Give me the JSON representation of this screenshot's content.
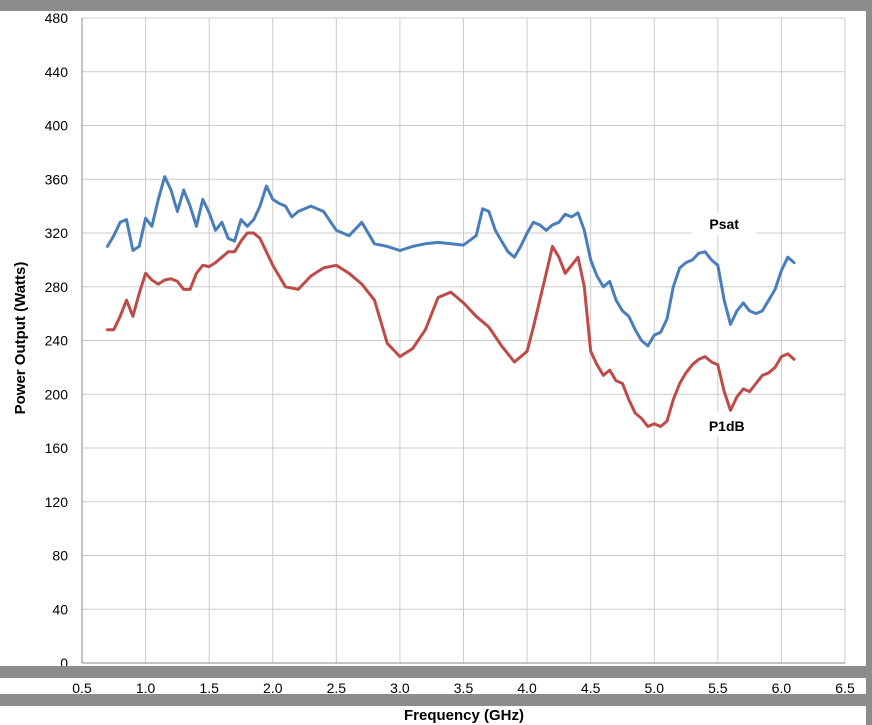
{
  "chart_data": {
    "type": "line",
    "xlabel": "Frequency (GHz)",
    "ylabel": "Power Output (Watts)",
    "xlim": [
      0.5,
      6.5
    ],
    "ylim": [
      0,
      480
    ],
    "xticks": [
      "0.5",
      "1.0",
      "1.5",
      "2.0",
      "2.5",
      "3.0",
      "3.5",
      "4.0",
      "4.5",
      "5.0",
      "5.5",
      "6.0",
      "6.5"
    ],
    "yticks": [
      "0",
      "40",
      "80",
      "120",
      "160",
      "200",
      "240",
      "280",
      "320",
      "360",
      "400",
      "440",
      "480"
    ],
    "grid": true,
    "colors": {
      "Psat": "#4a7ebb",
      "P1dB": "#be4b48"
    },
    "series": [
      {
        "name": "Psat",
        "x": [
          0.7,
          0.75,
          0.8,
          0.85,
          0.9,
          0.95,
          1.0,
          1.05,
          1.1,
          1.15,
          1.2,
          1.25,
          1.3,
          1.35,
          1.4,
          1.45,
          1.5,
          1.55,
          1.6,
          1.65,
          1.7,
          1.75,
          1.8,
          1.85,
          1.9,
          1.95,
          2.0,
          2.05,
          2.1,
          2.15,
          2.2,
          2.3,
          2.4,
          2.5,
          2.6,
          2.7,
          2.8,
          2.9,
          3.0,
          3.1,
          3.2,
          3.3,
          3.4,
          3.5,
          3.6,
          3.65,
          3.7,
          3.75,
          3.8,
          3.85,
          3.9,
          3.95,
          4.0,
          4.05,
          4.1,
          4.15,
          4.2,
          4.25,
          4.3,
          4.35,
          4.4,
          4.45,
          4.5,
          4.55,
          4.6,
          4.65,
          4.7,
          4.75,
          4.8,
          4.85,
          4.9,
          4.95,
          5.0,
          5.05,
          5.1,
          5.15,
          5.2,
          5.25,
          5.3,
          5.35,
          5.4,
          5.45,
          5.5,
          5.55,
          5.6,
          5.65,
          5.7,
          5.75,
          5.8,
          5.85,
          5.9,
          5.95,
          6.0,
          6.05,
          6.1
        ],
        "values": [
          310,
          318,
          328,
          330,
          307,
          310,
          331,
          325,
          345,
          362,
          352,
          336,
          352,
          340,
          325,
          345,
          335,
          322,
          328,
          316,
          314,
          330,
          325,
          330,
          340,
          355,
          345,
          342,
          340,
          332,
          336,
          340,
          336,
          322,
          318,
          328,
          312,
          310,
          307,
          310,
          312,
          313,
          312,
          311,
          318,
          338,
          336,
          322,
          314,
          306,
          302,
          310,
          320,
          328,
          326,
          322,
          326,
          328,
          334,
          332,
          335,
          322,
          300,
          288,
          280,
          284,
          270,
          262,
          258,
          248,
          240,
          236,
          244,
          246,
          256,
          280,
          294,
          298,
          300,
          305,
          306,
          300,
          296,
          270,
          252,
          262,
          268,
          262,
          260,
          262,
          270,
          278,
          292,
          302,
          298
        ]
      },
      {
        "name": "P1dB",
        "x": [
          0.7,
          0.75,
          0.8,
          0.85,
          0.9,
          0.95,
          1.0,
          1.05,
          1.1,
          1.15,
          1.2,
          1.25,
          1.3,
          1.35,
          1.4,
          1.45,
          1.5,
          1.55,
          1.6,
          1.65,
          1.7,
          1.75,
          1.8,
          1.85,
          1.9,
          1.95,
          2.0,
          2.1,
          2.2,
          2.3,
          2.4,
          2.5,
          2.6,
          2.7,
          2.8,
          2.9,
          3.0,
          3.1,
          3.2,
          3.3,
          3.4,
          3.5,
          3.6,
          3.7,
          3.8,
          3.9,
          4.0,
          4.05,
          4.1,
          4.15,
          4.2,
          4.25,
          4.3,
          4.35,
          4.4,
          4.45,
          4.5,
          4.55,
          4.6,
          4.65,
          4.7,
          4.75,
          4.8,
          4.85,
          4.9,
          4.95,
          5.0,
          5.05,
          5.1,
          5.15,
          5.2,
          5.25,
          5.3,
          5.35,
          5.4,
          5.45,
          5.5,
          5.55,
          5.6,
          5.65,
          5.7,
          5.75,
          5.8,
          5.85,
          5.9,
          5.95,
          6.0,
          6.05,
          6.1
        ],
        "values": [
          248,
          248,
          258,
          270,
          258,
          275,
          290,
          285,
          282,
          285,
          286,
          284,
          278,
          278,
          290,
          296,
          295,
          298,
          302,
          306,
          306,
          314,
          320,
          320,
          316,
          306,
          296,
          280,
          278,
          288,
          294,
          296,
          290,
          282,
          270,
          238,
          228,
          234,
          248,
          272,
          276,
          268,
          258,
          250,
          236,
          224,
          232,
          250,
          270,
          290,
          310,
          302,
          290,
          296,
          302,
          280,
          232,
          222,
          214,
          218,
          210,
          208,
          196,
          186,
          182,
          176,
          178,
          176,
          180,
          196,
          208,
          216,
          222,
          226,
          228,
          224,
          222,
          202,
          188,
          198,
          204,
          202,
          208,
          214,
          216,
          220,
          228,
          230,
          226
        ]
      }
    ]
  }
}
